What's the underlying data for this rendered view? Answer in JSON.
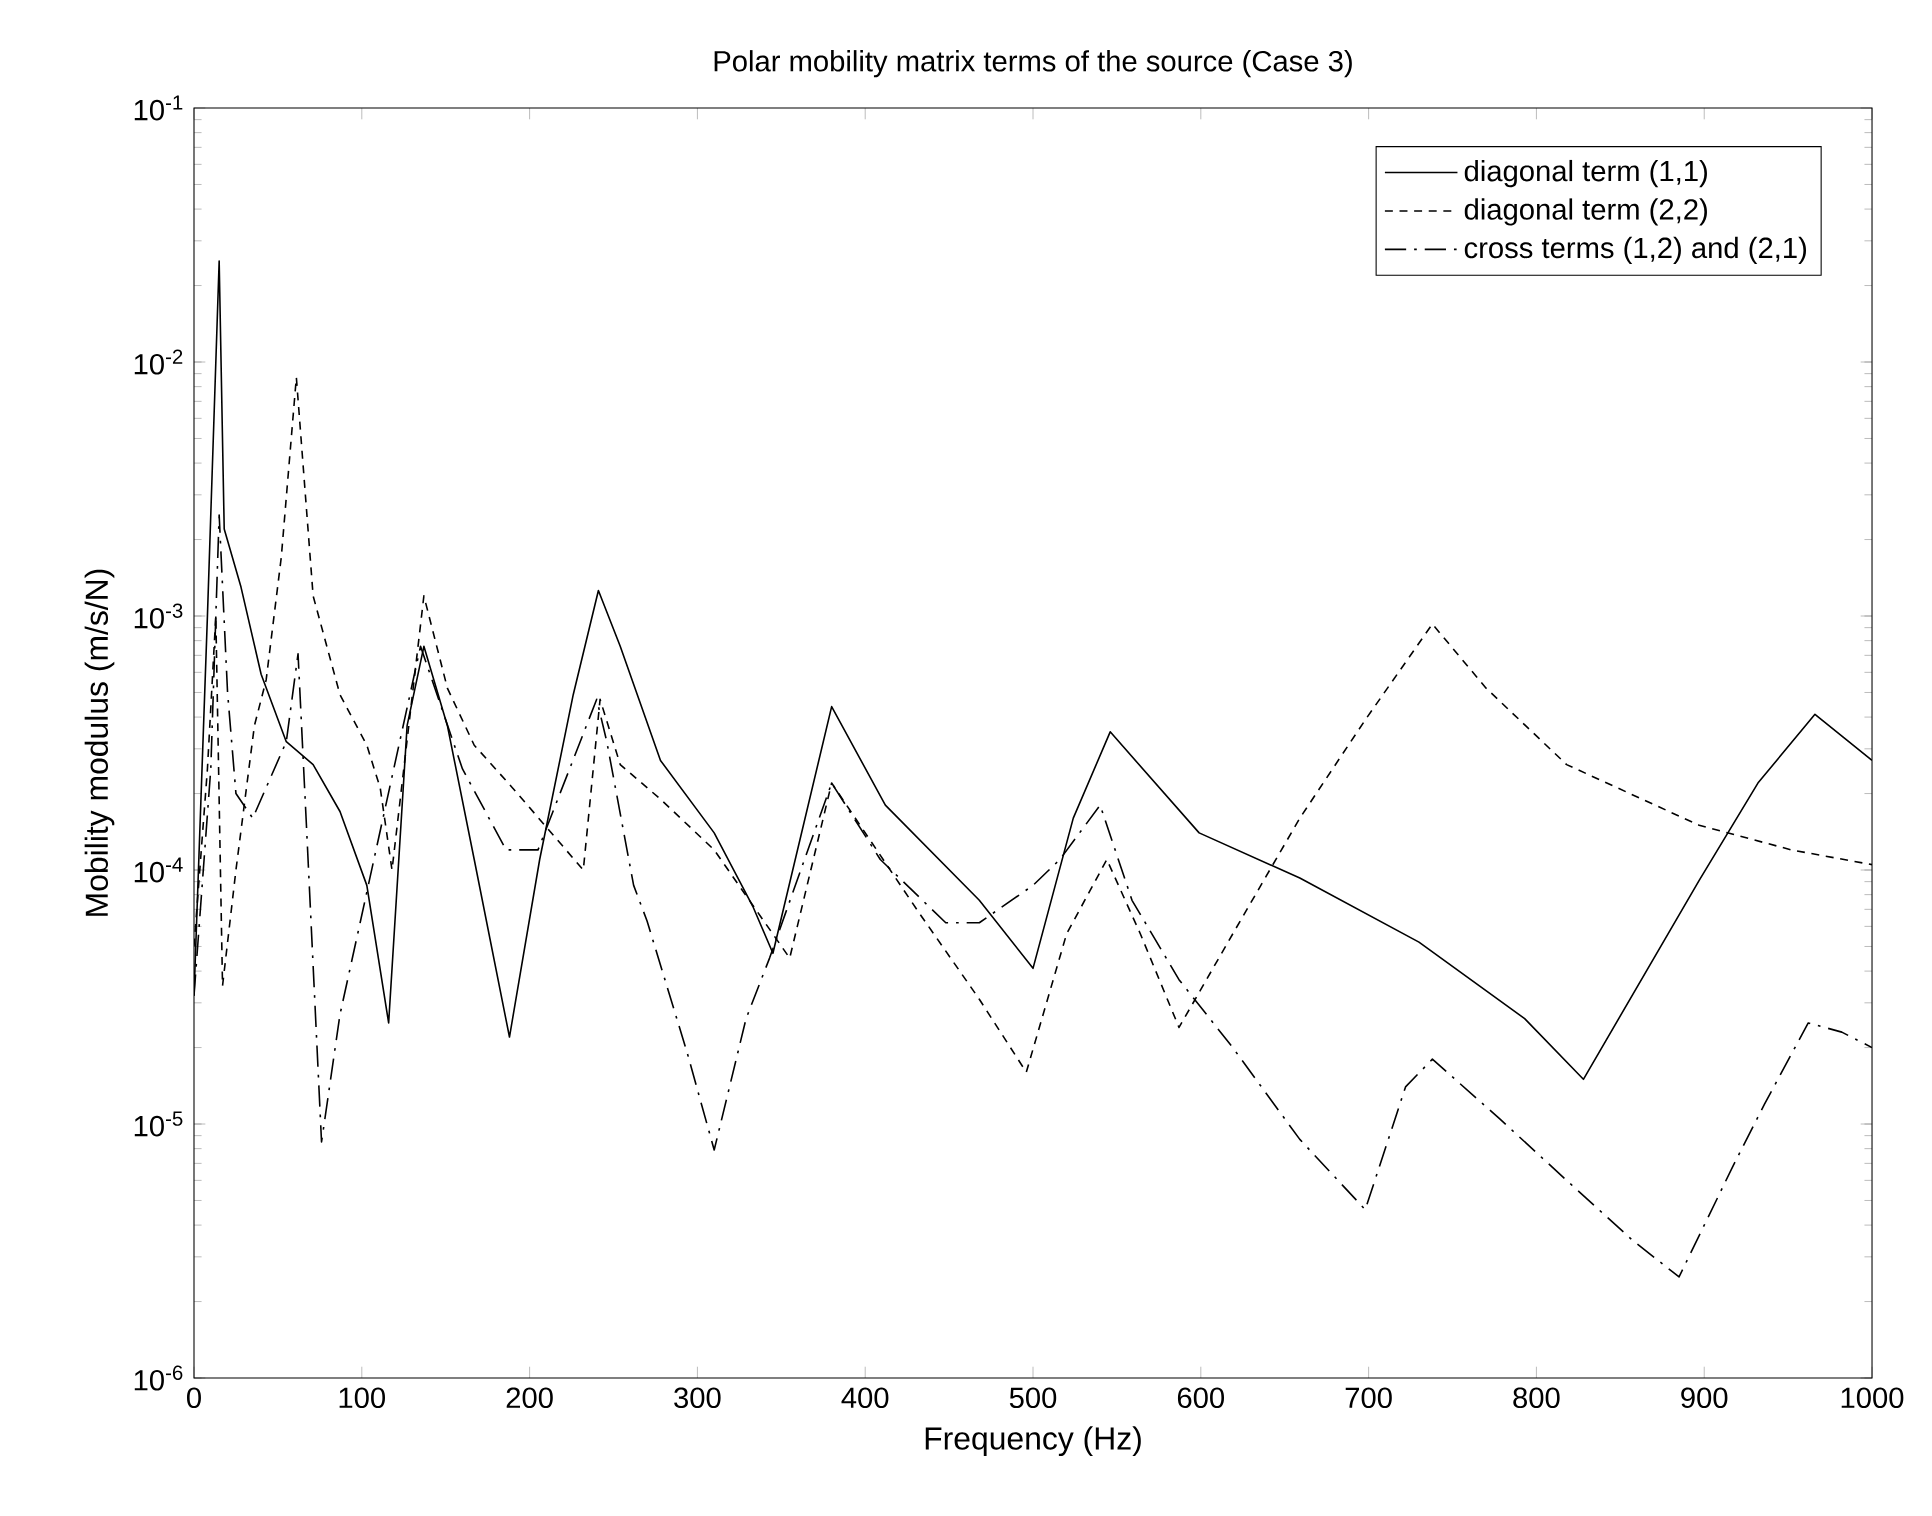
{
  "chart_data": {
    "type": "line",
    "title": "Polar mobility matrix terms of the source (Case 3)",
    "xlabel": "Frequency (Hz)",
    "ylabel": "Mobility modulus (m/s/N)",
    "log": "y",
    "legend": "top right",
    "grid": false,
    "marker": "none",
    "xlim": [
      0,
      1000
    ],
    "xticks": [
      0,
      100,
      200,
      300,
      400,
      500,
      600,
      700,
      800,
      900,
      1000
    ],
    "ylim": [
      1e-06,
      0.1
    ],
    "yticks": [
      {
        "value": 1e-06,
        "label": "10$^{-6}$"
      },
      {
        "value": 1e-05,
        "label": "10$^{-5}$"
      },
      {
        "value": 0.0001,
        "label": "10$^{-4}$"
      },
      {
        "value": 0.001,
        "label": "10$^{-3}$"
      },
      {
        "value": 0.01,
        "label": "10$^{-2}$"
      },
      {
        "value": 0.1,
        "label": "10$^{-1}$"
      }
    ],
    "series": [
      {
        "name": "diagonal term (1,1)",
        "color": "#000000",
        "line_style": "solid",
        "x": [
          0,
          8,
          15,
          18,
          28,
          40,
          55,
          71,
          87,
          103,
          116,
          127,
          137,
          151,
          167,
          188,
          206,
          226,
          241,
          254,
          278,
          310,
          333,
          345,
          380,
          412,
          468,
          500,
          524,
          546,
          599,
          659,
          730,
          793,
          828,
          897,
          932,
          966,
          1000
        ],
        "values": [
          3.2e-05,
          0.001,
          0.025,
          0.0022,
          0.0013,
          0.00059,
          0.00032,
          0.00026,
          0.00017,
          8.7e-05,
          2.5e-05,
          0.00037,
          0.00076,
          0.00037,
          0.00011,
          2.2e-05,
          0.00011,
          0.00049,
          0.00126,
          0.00076,
          0.00027,
          0.00014,
          7.2e-05,
          4.7e-05,
          0.00044,
          0.00018,
          7.6e-05,
          4.1e-05,
          0.00016,
          0.00035,
          0.00014,
          9.3e-05,
          5.2e-05,
          2.6e-05,
          1.5e-05,
          9.1e-05,
          0.00022,
          0.00041,
          0.00027
        ]
      },
      {
        "name": "diagonal term (2,2)",
        "color": "#000000",
        "line_style": "dotted",
        "x": [
          0,
          8,
          13,
          17,
          25,
          36,
          43,
          52,
          61,
          71,
          87,
          103,
          111,
          118,
          137,
          151,
          167,
          190,
          232,
          242,
          254,
          278,
          310,
          355,
          380,
          432,
          468,
          496,
          520,
          544,
          564,
          587,
          619,
          659,
          698,
          738,
          770,
          818,
          897,
          952,
          1000
        ],
        "values": [
          5e-05,
          0.00025,
          0.001,
          3.5e-05,
          0.0001,
          0.00037,
          0.00056,
          0.0017,
          0.0087,
          0.0012,
          0.00049,
          0.00031,
          0.00021,
          0.0001,
          0.0012,
          0.00052,
          0.00031,
          0.00021,
          0.0001,
          0.00047,
          0.00026,
          0.00019,
          0.00012,
          4.5e-05,
          0.00022,
          6.8e-05,
          3.1e-05,
          1.6e-05,
          5.6e-05,
          0.00011,
          5.6e-05,
          2.4e-05,
          5.6e-05,
          0.00016,
          0.00039,
          0.00093,
          0.00052,
          0.00026,
          0.00015,
          0.00012,
          0.000105
        ]
      },
      {
        "name": "cross terms (1,2) and (2,1)",
        "color": "#000000",
        "line_style": "dashed",
        "x": [
          0,
          10,
          15,
          20,
          25,
          35,
          55,
          62,
          67,
          76,
          87,
          99,
          135,
          160,
          186,
          205,
          240,
          246,
          262,
          270,
          294,
          310,
          329,
          343,
          380,
          409,
          448,
          468,
          500,
          516,
          540,
          559,
          587,
          619,
          659,
          698,
          722,
          738,
          778,
          818,
          857,
          885,
          917,
          936,
          962,
          982,
          1000
        ],
        "values": [
          3.2e-05,
          0.00025,
          0.0025,
          0.0005,
          0.0002,
          0.00016,
          0.00032,
          0.00071,
          0.00015,
          8.5e-06,
          2.7e-05,
          6.2e-05,
          0.00076,
          0.00025,
          0.00012,
          0.00012,
          0.00047,
          0.00032,
          8.7e-05,
          6.3e-05,
          1.9e-05,
          7.9e-06,
          2.6e-05,
          4.5e-05,
          0.00022,
          0.00011,
          6.2e-05,
          6.2e-05,
          8.7e-05,
          0.00011,
          0.00018,
          7.6e-05,
          3.7e-05,
          2e-05,
          8.7e-06,
          4.6e-06,
          1.4e-05,
          1.8e-05,
          1.05e-05,
          6e-06,
          3.5e-06,
          2.5e-06,
          6.8e-06,
          1.2e-05,
          2.5e-05,
          2.3e-05,
          2e-05
        ]
      }
    ]
  }
}
